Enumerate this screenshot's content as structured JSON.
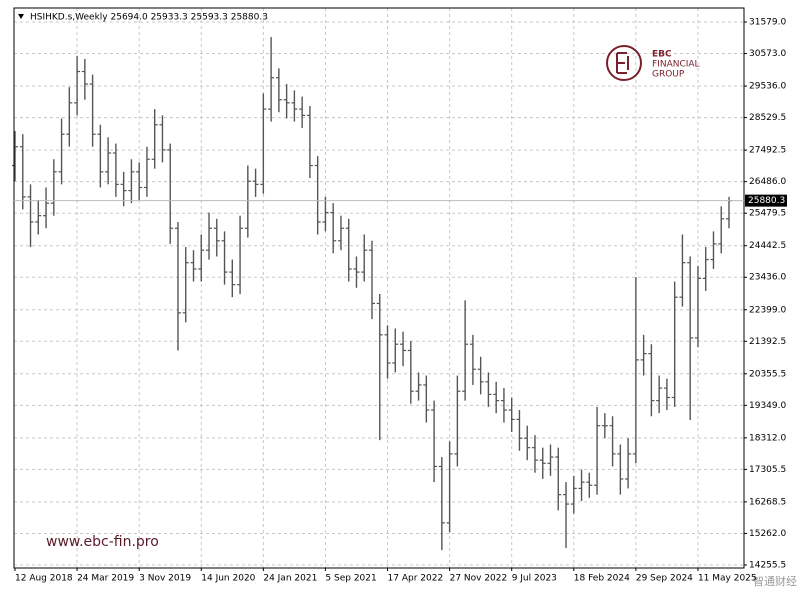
{
  "chart_data": {
    "type": "ohlc",
    "header": "HSIHKD.s,Weekly  25694.0 25933.3 25593.3 25880.3",
    "logo": {
      "brand": "EBC",
      "line1": "FINANCIAL",
      "line2": "GROUP"
    },
    "website": "www.ebc-fin.pro",
    "watermark": "智通财经",
    "color": "#555555",
    "grid": true,
    "last_price": 25880.3,
    "ylim": [
      14160,
      32026
    ],
    "yticks": [
      {
        "value": 31579,
        "label": "31579.0"
      },
      {
        "value": 30573,
        "label": "30573.0"
      },
      {
        "value": 29536,
        "label": "29536.0"
      },
      28529.5,
      27492.5,
      {
        "value": 26486,
        "label": "26486.0"
      },
      25479.5,
      24442.5,
      {
        "value": 23436,
        "label": "23436.0"
      },
      {
        "value": 22399,
        "label": "22399.0"
      },
      21392.5,
      20355.5,
      {
        "value": 19349,
        "label": "19349.0"
      },
      {
        "value": 18312,
        "label": "18312.0"
      },
      17305.5,
      16268.5,
      {
        "value": 15262,
        "label": "15262.0"
      },
      14255.5
    ],
    "categories": [
      "12 Aug 2018",
      null,
      null,
      null,
      null,
      null,
      null,
      null,
      "24 Mar 2019",
      null,
      null,
      null,
      null,
      null,
      null,
      null,
      "3 Nov 2019",
      null,
      null,
      null,
      null,
      null,
      null,
      null,
      "14 Jun 2020",
      null,
      null,
      null,
      null,
      null,
      null,
      null,
      "24 Jan 2021",
      null,
      null,
      null,
      null,
      null,
      null,
      null,
      "5 Sep 2021",
      null,
      null,
      null,
      null,
      null,
      null,
      null,
      "17 Apr 2022",
      null,
      null,
      null,
      null,
      null,
      null,
      null,
      "27 Nov 2022",
      null,
      null,
      null,
      null,
      null,
      null,
      null,
      "9 Jul 2023",
      null,
      null,
      null,
      null,
      null,
      null,
      null,
      "18 Feb 2024",
      null,
      null,
      null,
      null,
      null,
      null,
      null,
      "29 Sep 2024",
      null,
      null,
      null,
      null,
      null,
      null,
      null,
      "11 May 2025",
      null,
      null,
      null,
      null
    ],
    "open": [
      27000,
      27600,
      26000,
      25200,
      25400,
      25800,
      26800,
      28000,
      29000,
      30000,
      29600,
      28000,
      26800,
      27400,
      26400,
      26200,
      26800,
      26300,
      27200,
      28300,
      27500,
      25000,
      22300,
      23900,
      23700,
      24300,
      25000,
      24600,
      23600,
      23200,
      25000,
      26500,
      26400,
      28800,
      29800,
      29100,
      29000,
      28800,
      28600,
      27000,
      25200,
      25500,
      24600,
      25000,
      23700,
      23600,
      24300,
      22600,
      21600,
      20700,
      21300,
      21100,
      19800,
      20000,
      19200,
      17400,
      15600,
      17800,
      19800,
      21300,
      20500,
      20100,
      19700,
      19500,
      19200,
      18900,
      18300,
      18000,
      17600,
      17500,
      17700,
      16500,
      16200,
      16700,
      16900,
      16800,
      18700,
      18700,
      17800,
      17000,
      17800,
      20800,
      21000,
      19500,
      19900,
      19600,
      22800,
      23900,
      21500,
      23400,
      24000,
      24500,
      25300
    ],
    "high": [
      28100,
      28000,
      26400,
      25900,
      26300,
      27200,
      28500,
      29500,
      30500,
      30400,
      29900,
      28300,
      27900,
      27700,
      26800,
      27200,
      27100,
      27600,
      28800,
      28600,
      27700,
      25200,
      24400,
      24300,
      24800,
      25500,
      25300,
      24900,
      24000,
      25400,
      27000,
      26900,
      29300,
      31100,
      30100,
      29600,
      29400,
      29200,
      28900,
      27300,
      26000,
      25800,
      25400,
      25300,
      24100,
      24800,
      24600,
      22900,
      21900,
      21800,
      21700,
      21400,
      20400,
      20300,
      19500,
      17700,
      18200,
      20300,
      22700,
      21600,
      20900,
      20400,
      20100,
      19900,
      19600,
      19200,
      18700,
      18400,
      18000,
      18100,
      18000,
      16900,
      17100,
      17300,
      17200,
      19300,
      19100,
      19000,
      18100,
      18300,
      23440,
      21600,
      21300,
      20300,
      20200,
      23300,
      24800,
      24100,
      23800,
      24400,
      24900,
      25700,
      26000
    ],
    "low": [
      26500,
      25600,
      24400,
      24800,
      25000,
      25400,
      26400,
      27600,
      28600,
      29100,
      27600,
      26300,
      26400,
      26000,
      25700,
      25800,
      25900,
      26000,
      26900,
      27100,
      24500,
      21100,
      22000,
      23300,
      23300,
      24000,
      24100,
      23200,
      22800,
      22900,
      24700,
      26000,
      26100,
      28400,
      28700,
      28500,
      28400,
      28200,
      26600,
      24800,
      24900,
      24200,
      24300,
      23300,
      23100,
      23300,
      22100,
      18240,
      20200,
      20400,
      20600,
      19400,
      19500,
      18800,
      16900,
      14730,
      15300,
      17400,
      19500,
      20000,
      19700,
      19300,
      19100,
      18800,
      18500,
      17900,
      17600,
      17200,
      17000,
      17100,
      16000,
      14800,
      15900,
      16300,
      16400,
      16500,
      18300,
      17400,
      16500,
      16700,
      17500,
      20300,
      19000,
      19100,
      19200,
      19300,
      22500,
      18880,
      21200,
      23000,
      23700,
      24200,
      25000
    ],
    "close": [
      27600,
      26000,
      25200,
      25400,
      25800,
      26800,
      28000,
      29000,
      30000,
      29600,
      28000,
      26800,
      27400,
      26400,
      26200,
      26800,
      26300,
      27200,
      28300,
      27500,
      25000,
      22300,
      23900,
      23700,
      24300,
      25000,
      24600,
      23600,
      23200,
      25000,
      26500,
      26400,
      28800,
      29800,
      29100,
      29000,
      28800,
      28600,
      27000,
      25200,
      25500,
      24600,
      25000,
      23700,
      23600,
      24300,
      22600,
      21600,
      20700,
      21300,
      21100,
      19800,
      20000,
      19200,
      17400,
      15600,
      17800,
      19800,
      21300,
      20500,
      20100,
      19700,
      19500,
      19200,
      18900,
      18300,
      18000,
      17600,
      17500,
      17700,
      16500,
      16200,
      16700,
      16900,
      16800,
      18700,
      18700,
      17800,
      17000,
      17800,
      20800,
      21000,
      19500,
      19900,
      19600,
      22800,
      23900,
      21500,
      23400,
      24000,
      24500,
      25300,
      25880.3
    ]
  }
}
